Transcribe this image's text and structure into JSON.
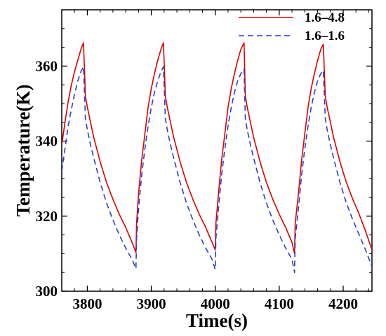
{
  "chart_data": {
    "type": "line",
    "title": "",
    "xlabel": "Time(s)",
    "ylabel": "Temperature(K)",
    "xlim": [
      3760,
      4245
    ],
    "ylim": [
      300,
      375
    ],
    "xticks": [
      "3800",
      "3900",
      "4000",
      "4100",
      "4200"
    ],
    "yticks": [
      "300",
      "320",
      "340",
      "360"
    ],
    "grid": false,
    "legend_position": "top-right",
    "series": [
      {
        "name": "1.6–4.8",
        "color": "#dd0000",
        "style": "solid",
        "x": [
          3760,
          3765,
          3770,
          3775,
          3780,
          3785,
          3790,
          3794,
          3797,
          3800,
          3805,
          3810,
          3820,
          3830,
          3840,
          3850,
          3860,
          3870,
          3876,
          3877,
          3880,
          3885,
          3890,
          3895,
          3900,
          3905,
          3910,
          3915,
          3919,
          3922,
          3925,
          3930,
          3935,
          3945,
          3955,
          3965,
          3975,
          3985,
          3995,
          4000,
          4001,
          4005,
          4010,
          4015,
          4020,
          4025,
          4030,
          4035,
          4040,
          4045,
          4047,
          4050,
          4055,
          4060,
          4070,
          4080,
          4090,
          4100,
          4110,
          4120,
          4124,
          4125,
          4130,
          4135,
          4140,
          4145,
          4150,
          4155,
          4160,
          4165,
          4169,
          4172,
          4175,
          4180,
          4185,
          4195,
          4205,
          4215,
          4225,
          4235,
          4245
        ],
        "values": [
          339,
          345,
          350.5,
          355,
          358.5,
          361.5,
          364.5,
          366.2,
          352,
          349,
          345,
          341,
          334.5,
          329,
          324.5,
          320.5,
          317,
          313,
          310.3,
          318,
          326,
          335,
          342,
          349,
          354,
          358,
          361.5,
          364.5,
          366.2,
          352,
          349,
          345,
          341,
          334.5,
          329,
          324.5,
          320.5,
          317,
          313,
          311,
          318,
          326,
          335,
          342,
          349,
          354,
          358,
          361.5,
          364.5,
          366.2,
          352,
          349,
          345,
          341,
          334.5,
          329,
          324.5,
          320.5,
          317,
          313,
          310,
          318,
          326,
          335,
          342,
          349,
          354,
          358,
          361.5,
          364.5,
          365.8,
          352,
          349,
          345,
          341,
          334.5,
          329,
          324.5,
          320.5,
          316,
          311
        ]
      },
      {
        "name": "1.6–1.6",
        "color": "#2a3ed6",
        "style": "dashed",
        "x": [
          3760,
          3765,
          3770,
          3775,
          3780,
          3785,
          3790,
          3794,
          3797,
          3800,
          3805,
          3810,
          3820,
          3830,
          3840,
          3850,
          3860,
          3870,
          3876,
          3877,
          3880,
          3885,
          3890,
          3895,
          3900,
          3905,
          3910,
          3915,
          3919,
          3922,
          3925,
          3930,
          3935,
          3945,
          3955,
          3965,
          3975,
          3985,
          3995,
          4000,
          4001,
          4005,
          4010,
          4015,
          4020,
          4025,
          4030,
          4035,
          4040,
          4045,
          4047,
          4050,
          4055,
          4060,
          4070,
          4080,
          4090,
          4100,
          4110,
          4120,
          4124,
          4125,
          4130,
          4135,
          4140,
          4145,
          4150,
          4155,
          4160,
          4165,
          4169,
          4172,
          4175,
          4180,
          4185,
          4195,
          4205,
          4215,
          4225,
          4235,
          4245
        ],
        "values": [
          332,
          338,
          344,
          348.5,
          352.5,
          356,
          358.5,
          359.8,
          346,
          343,
          339,
          335.5,
          329,
          323.5,
          319,
          315,
          311.5,
          308.5,
          306,
          314,
          322,
          331,
          338,
          344,
          349,
          353,
          356,
          358.5,
          359.8,
          346,
          343,
          339,
          335.5,
          329,
          323.5,
          319,
          315,
          311.5,
          308.5,
          305.8,
          314,
          322,
          331,
          338,
          344,
          349,
          353,
          356,
          358,
          359.2,
          346,
          343,
          339,
          335.5,
          329,
          323.5,
          319,
          315,
          311.5,
          308.5,
          305,
          314,
          322,
          331,
          338,
          344,
          349,
          353,
          356,
          358,
          358.8,
          346,
          343,
          339,
          335.5,
          329,
          323.5,
          319,
          315,
          311,
          306.5
        ]
      }
    ]
  }
}
